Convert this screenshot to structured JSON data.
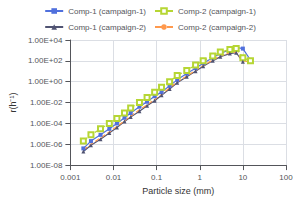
{
  "chart_data": {
    "type": "line",
    "xlabel": "Particle size (mm)",
    "ylabel": "r(h⁻¹)",
    "log": true,
    "grid": true,
    "legend": "top",
    "xlim": [
      0.001,
      100
    ],
    "ylim": [
      1e-08,
      10000.0
    ],
    "xticks": [
      0.001,
      0.01,
      0.1,
      1,
      10,
      100
    ],
    "yticks": [
      {
        "value": 1e-08,
        "label": "1.00E-08"
      },
      {
        "value": 1e-06,
        "label": "1.00E-06"
      },
      {
        "value": 0.0001,
        "label": "1.00E-04"
      },
      {
        "value": 0.01,
        "label": "1.00E-02"
      },
      {
        "value": 1,
        "label": "1.00E+00"
      },
      {
        "value": 100,
        "label": "1.00E+02"
      },
      {
        "value": 10000,
        "label": "1.00E+04"
      }
    ],
    "series": [
      {
        "name": "Comp-1 (campaign-1)",
        "marker": "square",
        "line_style": "solid",
        "x": [
          0.002,
          0.003,
          0.005,
          0.008,
          0.012,
          0.018,
          0.025,
          0.04,
          0.06,
          0.09,
          0.13,
          0.2,
          0.3,
          0.5,
          0.8,
          1.2,
          2.0,
          3.0,
          5.0,
          7.0,
          10.0,
          15.0
        ],
        "values": [
          4e-07,
          2e-06,
          8e-06,
          3e-05,
          0.0001,
          0.00035,
          0.001,
          0.004,
          0.012,
          0.04,
          0.1,
          0.4,
          1.5,
          6.0,
          20.0,
          60.0,
          200.0,
          500.0,
          1200.0,
          2000.0,
          1500.0,
          120.0
        ]
      },
      {
        "name": "Comp-2 (campaign-1)",
        "marker": "square_open",
        "line_style": "dashed",
        "x": [
          0.002,
          0.003,
          0.005,
          0.008,
          0.012,
          0.018,
          0.025,
          0.04,
          0.06,
          0.09,
          0.13,
          0.2,
          0.3,
          0.5,
          0.8,
          1.2,
          2.0,
          3.0,
          5.0,
          7.0,
          10.0,
          15.0
        ],
        "values": [
          2e-06,
          8e-06,
          3e-05,
          0.0001,
          0.0003,
          0.001,
          0.003,
          0.01,
          0.03,
          0.1,
          0.3,
          1.0,
          4.0,
          12.0,
          40.0,
          100.0,
          300.0,
          700.0,
          1200.0,
          1500.0,
          200.0,
          100.0
        ]
      },
      {
        "name": "Comp-1 (campaign-2)",
        "marker": "triangle",
        "line_style": "solid",
        "x": [
          0.002,
          0.003,
          0.005,
          0.008,
          0.012,
          0.018,
          0.025,
          0.04,
          0.06,
          0.09,
          0.13,
          0.2,
          0.3,
          0.5,
          0.8,
          1.2,
          2.0,
          3.0,
          5.0,
          7.0,
          10.0
        ],
        "values": [
          2e-07,
          8e-07,
          3e-06,
          1.2e-05,
          4e-05,
          0.00015,
          0.0004,
          0.0015,
          0.005,
          0.015,
          0.05,
          0.2,
          0.8,
          3.0,
          10.0,
          30.0,
          100.0,
          250.0,
          500.0,
          600.0,
          80.0
        ]
      },
      {
        "name": "Comp-2 (campaign-2)",
        "marker": "none",
        "line_style": "dashed",
        "x": [
          0.002,
          0.003,
          0.005,
          0.008,
          0.012,
          0.018,
          0.025,
          0.04,
          0.06,
          0.09,
          0.13,
          0.2,
          0.3,
          0.5,
          0.8,
          1.2,
          2.0,
          3.0,
          5.0,
          7.0,
          10.0,
          15.0
        ],
        "values": [
          3e-07,
          1e-06,
          4e-06,
          1.5e-05,
          5e-05,
          0.00018,
          0.0005,
          0.002,
          0.006,
          0.02,
          0.06,
          0.25,
          1.0,
          3.5,
          12.0,
          35.0,
          120.0,
          300.0,
          600.0,
          700.0,
          100.0,
          80.0
        ]
      }
    ]
  }
}
